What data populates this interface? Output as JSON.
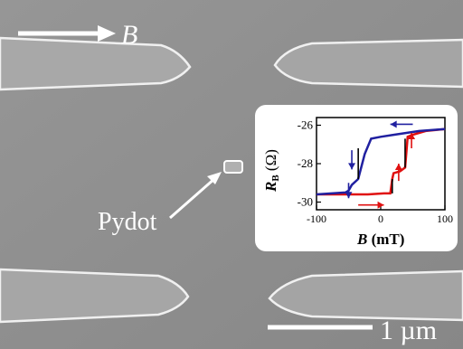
{
  "image": {
    "field_label": "B",
    "dot_label": "Pydot",
    "scale_bar_label": "1 µm"
  },
  "inset": {
    "chart_data": {
      "type": "line",
      "title": "",
      "xlabel": "B (mT)",
      "ylabel": "R_B (Ω)",
      "xlim": [
        -100,
        100
      ],
      "ylim": [
        -30.4,
        -25.6
      ],
      "x_ticks": [
        "-100",
        "0",
        "100"
      ],
      "y_ticks": [
        "-26",
        "-28",
        "-30"
      ],
      "grid": false,
      "series": [
        {
          "color": "#e01010",
          "sweep": "up",
          "points": [
            [
              -100,
              -29.6
            ],
            [
              -75,
              -29.6
            ],
            [
              -50,
              -29.6
            ],
            [
              -20,
              -29.6
            ],
            [
              5,
              -29.55
            ],
            [
              15,
              -29.55
            ],
            [
              18,
              -28.8
            ],
            [
              20,
              -28.5
            ],
            [
              30,
              -28.4
            ],
            [
              38,
              -28.2
            ],
            [
              42,
              -26.6
            ],
            [
              50,
              -26.5
            ],
            [
              70,
              -26.3
            ],
            [
              100,
              -26.2
            ]
          ]
        },
        {
          "color": "#2020a0",
          "sweep": "down",
          "points": [
            [
              100,
              -26.2
            ],
            [
              60,
              -26.3
            ],
            [
              20,
              -26.5
            ],
            [
              0,
              -26.6
            ],
            [
              -15,
              -26.7
            ],
            [
              -25,
              -27.5
            ],
            [
              -35,
              -28.8
            ],
            [
              -45,
              -29.1
            ],
            [
              -50,
              -29.4
            ],
            [
              -55,
              -29.5
            ],
            [
              -100,
              -29.6
            ]
          ]
        }
      ],
      "arrow_colors": {
        "up": "#e01010",
        "down": "#2020a0"
      }
    }
  }
}
